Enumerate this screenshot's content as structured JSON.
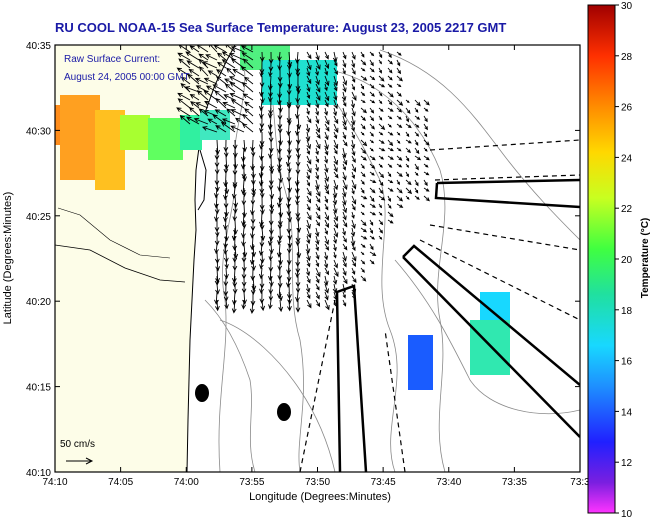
{
  "title": "RU COOL  NOAA-15  Sea Surface Temperature:  August 23, 2005 2217 GMT",
  "current_label": {
    "line1": "Raw Surface Current:",
    "line2": "August 24, 2005 00:00 GMT"
  },
  "scale_label": "50 cm/s",
  "axes": {
    "xlabel": "Longitude (Degrees:Minutes)",
    "ylabel": "Latitude (Degrees:Minutes)",
    "x_ticks": [
      "74:10",
      "74:05",
      "74:00",
      "73:55",
      "73:50",
      "73:45",
      "73:40",
      "73:35",
      "73:3"
    ],
    "y_ticks": [
      "40:35",
      "40:30",
      "40:25",
      "40:20",
      "40:15",
      "40:10"
    ]
  },
  "colorbar": {
    "label": "Temperature (°C)",
    "ticks": [
      "30",
      "28",
      "26",
      "24",
      "22",
      "20",
      "18",
      "16",
      "14",
      "12",
      "10"
    ],
    "min": 10,
    "max": 30,
    "colors": [
      "#ff33ff",
      "#7a1fe0",
      "#2020ff",
      "#1e90ff",
      "#18d8ff",
      "#20e0a0",
      "#40ff40",
      "#c8ff20",
      "#ffd800",
      "#ff8c00",
      "#ff3000",
      "#a00000"
    ]
  },
  "colors": {
    "title": "#1a1aa6",
    "annotation": "#1a1aa6",
    "land": "#fdfde8",
    "frame": "#000000"
  }
}
